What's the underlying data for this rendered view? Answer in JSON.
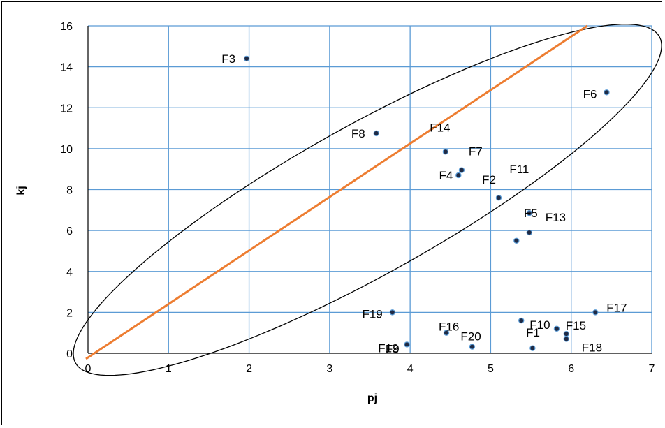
{
  "chart_data": {
    "type": "scatter",
    "title": "",
    "xlabel": "pj",
    "ylabel": "kj",
    "xlim": [
      0,
      7
    ],
    "ylim": [
      0,
      16
    ],
    "x_ticks": [
      "0",
      "1",
      "2",
      "3",
      "4",
      "5",
      "6",
      "7"
    ],
    "y_ticks": [
      "0",
      "2",
      "4",
      "6",
      "8",
      "10",
      "12",
      "14",
      "16"
    ],
    "grid": true,
    "legend": "none",
    "colors": {
      "grid": "#5b9bd5",
      "point_fill": "#1f2a44",
      "point_edge": "#5b9bd5",
      "trend_line": "#ed7d31",
      "ellipse": "#000000"
    },
    "points": [
      {
        "label": "F1",
        "x": 5.82,
        "y": 1.2
      },
      {
        "label": "F2",
        "x": 5.1,
        "y": 7.6
      },
      {
        "label": "F3",
        "x": 1.97,
        "y": 14.4
      },
      {
        "label": "F4",
        "x": 4.6,
        "y": 8.7
      },
      {
        "label": "F5",
        "x": 5.48,
        "y": 6.85
      },
      {
        "label": "F6",
        "x": 6.44,
        "y": 12.75
      },
      {
        "label": "F7",
        "x": 4.64,
        "y": 8.95
      },
      {
        "label": "F8",
        "x": 3.58,
        "y": 10.75
      },
      {
        "label": "F9",
        "x": 4.77,
        "y": 0.32
      },
      {
        "label": "F10",
        "x": 5.38,
        "y": 1.6
      },
      {
        "label": "F11",
        "x": 5.32,
        "y": 5.5
      },
      {
        "label": "F12",
        "x": 3.96,
        "y": 0.43
      },
      {
        "label": "F13",
        "x": 5.48,
        "y": 5.9
      },
      {
        "label": "F14",
        "x": 4.44,
        "y": 9.85
      },
      {
        "label": "F15",
        "x": 5.94,
        "y": 0.95
      },
      {
        "label": "F16",
        "x": 4.45,
        "y": 1.0
      },
      {
        "label": "F17",
        "x": 6.3,
        "y": 2.0
      },
      {
        "label": "F18",
        "x": 5.94,
        "y": 0.7
      },
      {
        "label": "F19",
        "x": 3.78,
        "y": 2.0
      },
      {
        "label": "F20",
        "x": 5.52,
        "y": 0.25
      }
    ],
    "trend_line": {
      "x": [
        0,
        6.2
      ],
      "y": [
        0,
        16
      ]
    },
    "enclosing_ellipse": {
      "center": [
        3.47,
        7.5
      ],
      "semi_axis_major": 9.18,
      "semi_axis_minor": 1.64
    }
  }
}
